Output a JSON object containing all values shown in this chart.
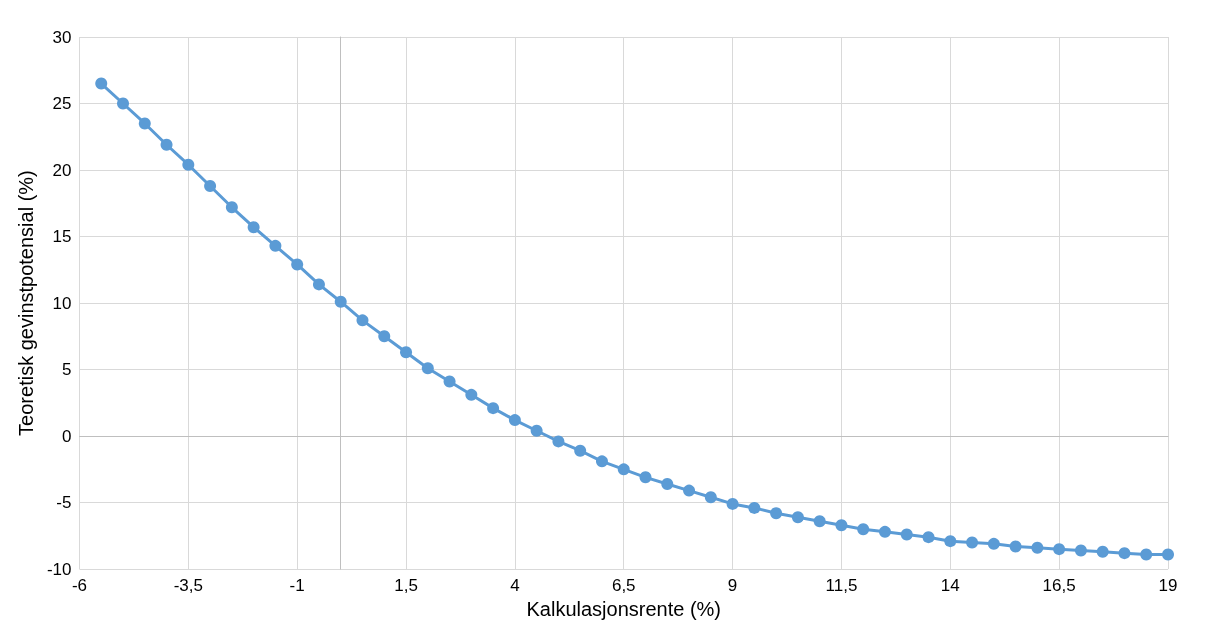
{
  "chart_data": {
    "type": "line",
    "xlabel": "Kalkulasjonsrente (%)",
    "ylabel": "Teoretisk gevinstpotensial (%)",
    "x": [
      -5.5,
      -5,
      -4.5,
      -4,
      -3.5,
      -3,
      -2.5,
      -2,
      -1.5,
      -1,
      -0.5,
      0,
      0.5,
      1,
      1.5,
      2,
      2.5,
      3,
      3.5,
      4,
      4.5,
      5,
      5.5,
      6,
      6.5,
      7,
      7.5,
      8,
      8.5,
      9,
      9.5,
      10,
      10.5,
      11,
      11.5,
      12,
      12.5,
      13,
      13.5,
      14,
      14.5,
      15,
      15.5,
      16,
      16.5,
      17,
      17.5,
      18,
      18.5,
      19
    ],
    "series": [
      {
        "color": "#5b9bd5",
        "values": [
          26.5,
          25.0,
          23.5,
          21.9,
          20.4,
          18.8,
          17.2,
          15.7,
          14.3,
          12.9,
          11.4,
          10.1,
          8.7,
          7.5,
          6.3,
          5.1,
          4.1,
          3.1,
          2.1,
          1.2,
          0.4,
          -0.4,
          -1.1,
          -1.9,
          -2.5,
          -3.1,
          -3.6,
          -4.1,
          -4.6,
          -5.1,
          -5.4,
          -5.8,
          -6.1,
          -6.4,
          -6.7,
          -7.0,
          -7.2,
          -7.4,
          -7.6,
          -7.9,
          -8.0,
          -8.1,
          -8.3,
          -8.4,
          -8.5,
          -8.6,
          -8.7,
          -8.8,
          -8.9,
          -8.9
        ]
      }
    ],
    "xlim": [
      -6,
      19
    ],
    "xticks": [
      -6,
      {
        "value": -3.5,
        "label": "-3,5"
      },
      -1,
      {
        "value": 1.5,
        "label": "1,5"
      },
      4,
      {
        "value": 6.5,
        "label": "6,5"
      },
      9,
      {
        "value": 11.5,
        "label": "11,5"
      },
      14,
      {
        "value": 16.5,
        "label": "16,5"
      },
      19
    ],
    "ylim": [
      -10,
      30
    ],
    "yticks": [
      -10,
      -5,
      0,
      5,
      10,
      15,
      20,
      25,
      30
    ],
    "grid": true,
    "marker": "circle",
    "line_style": "solid"
  }
}
